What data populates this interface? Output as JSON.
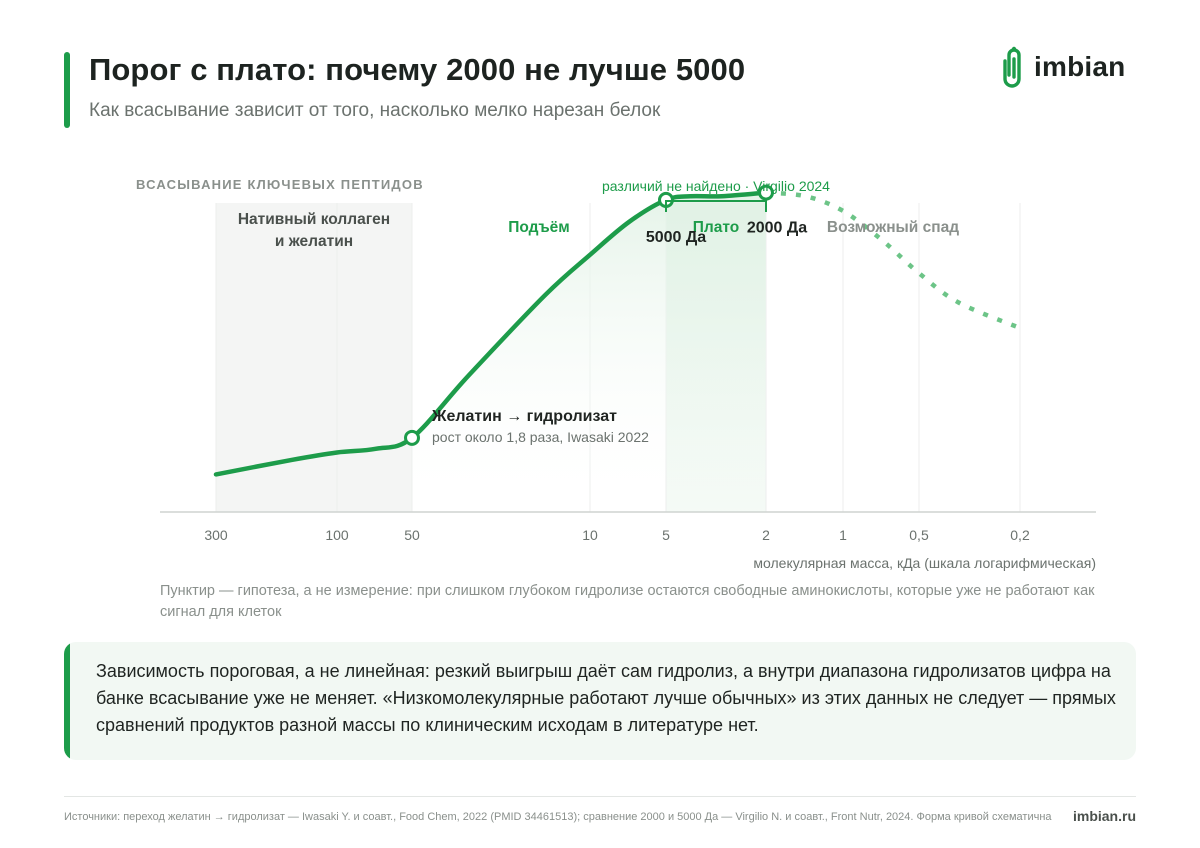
{
  "header": {
    "title": "Порог с плато: почему 2000 не лучше 5000",
    "subtitle": "Как всасывание зависит от того, насколько мелко нарезан белок"
  },
  "logo": {
    "text": "imbian",
    "icon": "paperclip-i-icon",
    "color": "#1d9c4a"
  },
  "colors": {
    "accent": "#1d9c4a",
    "text": "#1f2421",
    "muted": "#8a908c"
  },
  "chart_data": {
    "type": "line",
    "ylabel": "ВСАСЫВАНИЕ КЛЮЧЕВЫХ ПЕПТИДОВ",
    "xlabel": "молекулярная масса, кДа (шкала логарифмическая)",
    "x_scale": "log",
    "x_reversed": true,
    "x_ticks": [
      {
        "value": 300,
        "label": "300"
      },
      {
        "value": 100,
        "label": "100"
      },
      {
        "value": 50,
        "label": "50"
      },
      {
        "value": 10,
        "label": "10"
      },
      {
        "value": 5,
        "label": "5"
      },
      {
        "value": 2,
        "label": "2"
      },
      {
        "value": 1,
        "label": "1"
      },
      {
        "value": 0.5,
        "label": "0,5"
      },
      {
        "value": 0.2,
        "label": "0,2"
      }
    ],
    "y_range": [
      0,
      1
    ],
    "grid": "vertical",
    "series": [
      {
        "style": "solid",
        "x": [
          300,
          150,
          100,
          70,
          50,
          30,
          15,
          10,
          7,
          5,
          4,
          3,
          2
        ],
        "y": [
          0.13,
          0.17,
          0.19,
          0.2,
          0.23,
          0.4,
          0.62,
          0.73,
          0.82,
          0.88,
          0.89,
          0.89,
          0.9
        ]
      },
      {
        "style": "dashed",
        "x": [
          2,
          1.4,
          1,
          0.7,
          0.5,
          0.35,
          0.2
        ],
        "y": [
          0.9,
          0.89,
          0.85,
          0.77,
          0.68,
          0.6,
          0.53
        ]
      }
    ],
    "regions": [
      {
        "from": 300,
        "to": 50,
        "label": "Нативный коллаген и желатин",
        "label_lines": [
          "Нативный коллаген",
          "и желатин"
        ],
        "style": "gray"
      },
      {
        "from": 50,
        "to": 5,
        "label": "Подъём",
        "style": "none"
      },
      {
        "from": 5,
        "to": 2,
        "label": "Плато",
        "style": "green"
      },
      {
        "from": 2,
        "to": 0.2,
        "label": "Возможный спад",
        "style": "none"
      }
    ],
    "bracket": {
      "from": 5,
      "to": 2,
      "label": "различий не найдено · Virgilio 2024"
    },
    "points": [
      {
        "x": 50,
        "y": 0.23,
        "title": "Желатин → гидролизат",
        "note": "рост около 1,8 раза, Iwasaki 2022"
      },
      {
        "x": 5,
        "y": 0.88,
        "label": "5000 Да"
      },
      {
        "x": 2,
        "y": 0.9,
        "label": "2000 Да"
      }
    ]
  },
  "note": "Пунктир — гипотеза, а не измерение: при слишком глубоком гидролизе остаются свободные аминокислоты, которые уже не работают как сигнал для клеток",
  "callout": "Зависимость пороговая, а не линейная: резкий выигрыш даёт сам гидролиз, а внутри диапазона гидролизатов цифра на банке всасывание уже не меняет. «Низкомолекулярные работают лучше обычных» из этих данных не следует — прямых сравнений продуктов разной массы по клиническим исходам в литературе нет.",
  "footer": {
    "sources": "Источники: переход желатин → гидролизат — Iwasaki Y. и соавт., Food Chem, 2022 (PMID 34461513); сравнение 2000 и 5000 Да — Virgilio N. и соавт., Front Nutr, 2024. Форма кривой схематична",
    "site": "imbian.ru"
  }
}
